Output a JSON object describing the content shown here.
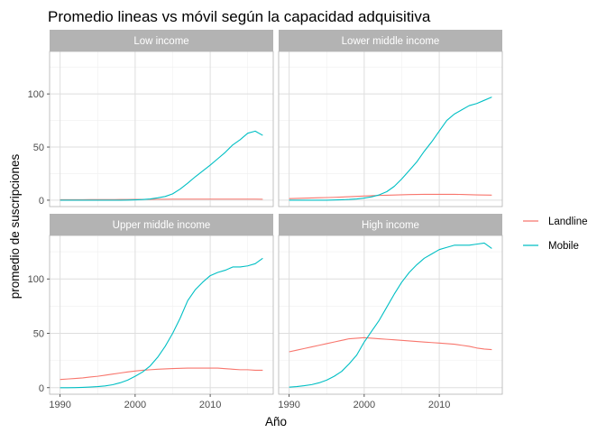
{
  "title": "Promedio lineas vs móvil según la capacidad adquisitiva",
  "colors": {
    "landline": "#F8766D",
    "mobile": "#00BFC4",
    "strip_bg": "#B3B3B3",
    "grid_major": "#DEDEDE",
    "grid_minor": "#EFEFEF",
    "panel_border": "#B3B3B3"
  },
  "chart_data": {
    "type": "line",
    "title": "Promedio lineas vs móvil según la capacidad adquisitiva",
    "xlabel": "Año",
    "ylabel": "promedio de suscripciones",
    "xlim": [
      1988.6,
      2018.4
    ],
    "ylim": [
      -6,
      140
    ],
    "x_ticks": [
      1990,
      2000,
      2010
    ],
    "y_ticks": [
      0,
      50,
      100
    ],
    "grid": true,
    "legend_position": "right",
    "legend": [
      "Landline",
      "Mobile"
    ],
    "x": [
      1990,
      1991,
      1992,
      1993,
      1994,
      1995,
      1996,
      1997,
      1998,
      1999,
      2000,
      2001,
      2002,
      2003,
      2004,
      2005,
      2006,
      2007,
      2008,
      2009,
      2010,
      2011,
      2012,
      2013,
      2014,
      2015,
      2016,
      2017
    ],
    "panels": [
      {
        "name": "Low income",
        "series": [
          {
            "name": "Landline",
            "values": [
              0.4,
              0.4,
              0.4,
              0.4,
              0.5,
              0.5,
              0.5,
              0.5,
              0.6,
              0.6,
              0.7,
              0.8,
              0.8,
              0.9,
              0.9,
              1.0,
              1.0,
              1.0,
              1.0,
              1.0,
              1.0,
              1.0,
              1.0,
              1.0,
              1.0,
              1.0,
              1.0,
              0.9
            ]
          },
          {
            "name": "Mobile",
            "values": [
              0,
              0,
              0,
              0,
              0,
              0,
              0,
              0,
              0,
              0.1,
              0.3,
              0.6,
              1.2,
              2.2,
              3.5,
              6.0,
              10.5,
              16,
              22,
              27.5,
              33,
              39,
              45,
              52,
              57,
              63,
              65,
              61
            ]
          }
        ]
      },
      {
        "name": "Lower middle income",
        "series": [
          {
            "name": "Landline",
            "values": [
              1.5,
              1.7,
              1.9,
              2.1,
              2.3,
              2.5,
              2.7,
              3.0,
              3.3,
              3.6,
              3.9,
              4.2,
              4.5,
              4.7,
              4.9,
              5.1,
              5.3,
              5.4,
              5.5,
              5.5,
              5.5,
              5.5,
              5.5,
              5.4,
              5.2,
              5.0,
              4.9,
              4.8
            ]
          },
          {
            "name": "Mobile",
            "values": [
              0,
              0,
              0,
              0,
              0,
              0,
              0.2,
              0.4,
              0.7,
              1.2,
              2.0,
              3.2,
              5,
              8,
              13,
              20,
              28,
              36,
              46,
              55,
              65,
              75,
              81,
              85,
              89,
              91,
              94,
              97
            ]
          }
        ]
      },
      {
        "name": "Upper middle income",
        "series": [
          {
            "name": "Landline",
            "values": [
              7.5,
              8,
              8.5,
              9,
              9.8,
              10.5,
              11.5,
              12.5,
              13.5,
              14.5,
              15.3,
              16,
              16.5,
              17,
              17.3,
              17.6,
              17.8,
              18,
              18,
              18,
              18,
              18,
              17.5,
              17,
              16.5,
              16.5,
              16,
              16
            ]
          },
          {
            "name": "Mobile",
            "values": [
              0,
              0,
              0.1,
              0.3,
              0.6,
              1.0,
              1.6,
              2.7,
              4.5,
              7,
              10.5,
              14.5,
              20,
              28,
              38,
              50,
              64,
              80,
              90,
              97,
              103,
              106,
              108,
              111,
              111,
              112,
              114,
              119
            ]
          }
        ]
      },
      {
        "name": "High income",
        "series": [
          {
            "name": "Landline",
            "values": [
              33,
              34.5,
              36,
              37.5,
              39,
              40.5,
              42,
              43.5,
              45,
              45.5,
              46,
              45.5,
              45,
              44.5,
              44,
              43.5,
              43,
              42.5,
              42,
              41.5,
              41,
              40.5,
              40,
              39,
              38,
              36.5,
              35.5,
              35
            ]
          },
          {
            "name": "Mobile",
            "values": [
              0.5,
              1.0,
              1.8,
              2.8,
              4.5,
              7,
              10.5,
              15,
              22,
              30,
              42,
              52,
              62,
              74,
              86,
              97,
              106,
              113,
              119,
              123,
              127,
              129,
              131,
              131,
              131,
              132,
              133,
              128
            ]
          }
        ]
      }
    ]
  }
}
